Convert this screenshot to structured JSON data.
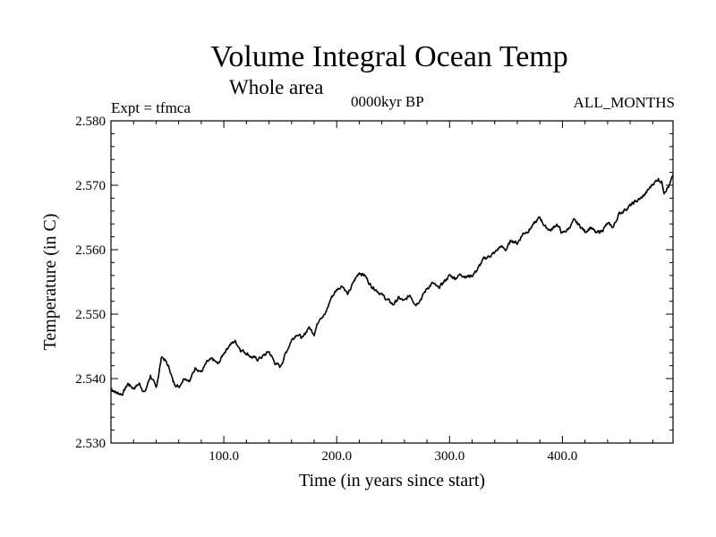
{
  "header": {
    "title": "Volume Integral Ocean Temp",
    "subtitle": "Whole area",
    "experiment": "Expt = tfmca",
    "time_period": "0000kyr BP",
    "months": "ALL_MONTHS"
  },
  "chart_data": {
    "type": "line",
    "title": "Volume Integral Ocean Temp",
    "subtitle": "Whole area",
    "xlabel": "Time (in years since start)",
    "ylabel": "Temperature (in C)",
    "xlim": [
      0,
      498
    ],
    "ylim": [
      2.53,
      2.58
    ],
    "x_ticks": [
      100,
      200,
      300,
      400
    ],
    "x_tick_labels": [
      "100.0",
      "200.0",
      "300.0",
      "400.0"
    ],
    "y_ticks": [
      2.53,
      2.54,
      2.55,
      2.56,
      2.57,
      2.58
    ],
    "y_tick_labels": [
      "2.530",
      "2.540",
      "2.550",
      "2.560",
      "2.570",
      "2.580"
    ],
    "grid": false,
    "line_color": "#000000",
    "series": [
      {
        "x": [
          0,
          5,
          10,
          15,
          20,
          25,
          30,
          35,
          40,
          45,
          48,
          52,
          55,
          60,
          65,
          70,
          75,
          80,
          85,
          90,
          95,
          100,
          105,
          110,
          115,
          120,
          125,
          130,
          135,
          140,
          145,
          150,
          155,
          160,
          165,
          170,
          175,
          180,
          185,
          190,
          195,
          200,
          205,
          210,
          215,
          220,
          225,
          230,
          235,
          240,
          245,
          250,
          255,
          260,
          265,
          270,
          275,
          280,
          285,
          290,
          295,
          300,
          305,
          310,
          315,
          320,
          325,
          330,
          335,
          340,
          345,
          350,
          355,
          360,
          365,
          370,
          375,
          380,
          385,
          390,
          395,
          400,
          405,
          410,
          415,
          420,
          425,
          430,
          435,
          440,
          445,
          450,
          455,
          460,
          465,
          470,
          475,
          480,
          485,
          488,
          490,
          495,
          498
        ],
        "y": [
          2.5385,
          2.5378,
          2.5376,
          2.5392,
          2.5385,
          2.5392,
          2.5378,
          2.5405,
          2.5385,
          2.5435,
          2.5428,
          2.5415,
          2.5395,
          2.5387,
          2.5402,
          2.5397,
          2.5418,
          2.541,
          2.5425,
          2.543,
          2.5422,
          2.544,
          2.5452,
          2.5458,
          2.5445,
          2.544,
          2.5433,
          2.543,
          2.5435,
          2.5442,
          2.5425,
          2.5418,
          2.544,
          2.546,
          2.547,
          2.5462,
          2.548,
          2.547,
          2.5495,
          2.55,
          2.5525,
          2.5538,
          2.5545,
          2.553,
          2.555,
          2.5565,
          2.556,
          2.5545,
          2.5538,
          2.553,
          2.5522,
          2.5515,
          2.5525,
          2.552,
          2.553,
          2.5515,
          2.5525,
          2.554,
          2.5548,
          2.554,
          2.555,
          2.556,
          2.5556,
          2.5562,
          2.5558,
          2.556,
          2.557,
          2.5585,
          2.559,
          2.5595,
          2.5605,
          2.56,
          2.5615,
          2.561,
          2.5625,
          2.563,
          2.564,
          2.565,
          2.5635,
          2.563,
          2.564,
          2.5625,
          2.5632,
          2.5645,
          2.5638,
          2.5628,
          2.5635,
          2.5625,
          2.563,
          2.564,
          2.5635,
          2.5655,
          2.5662,
          2.5668,
          2.5675,
          2.568,
          2.569,
          2.5702,
          2.571,
          2.5705,
          2.569,
          2.57,
          2.5715
        ]
      }
    ]
  }
}
